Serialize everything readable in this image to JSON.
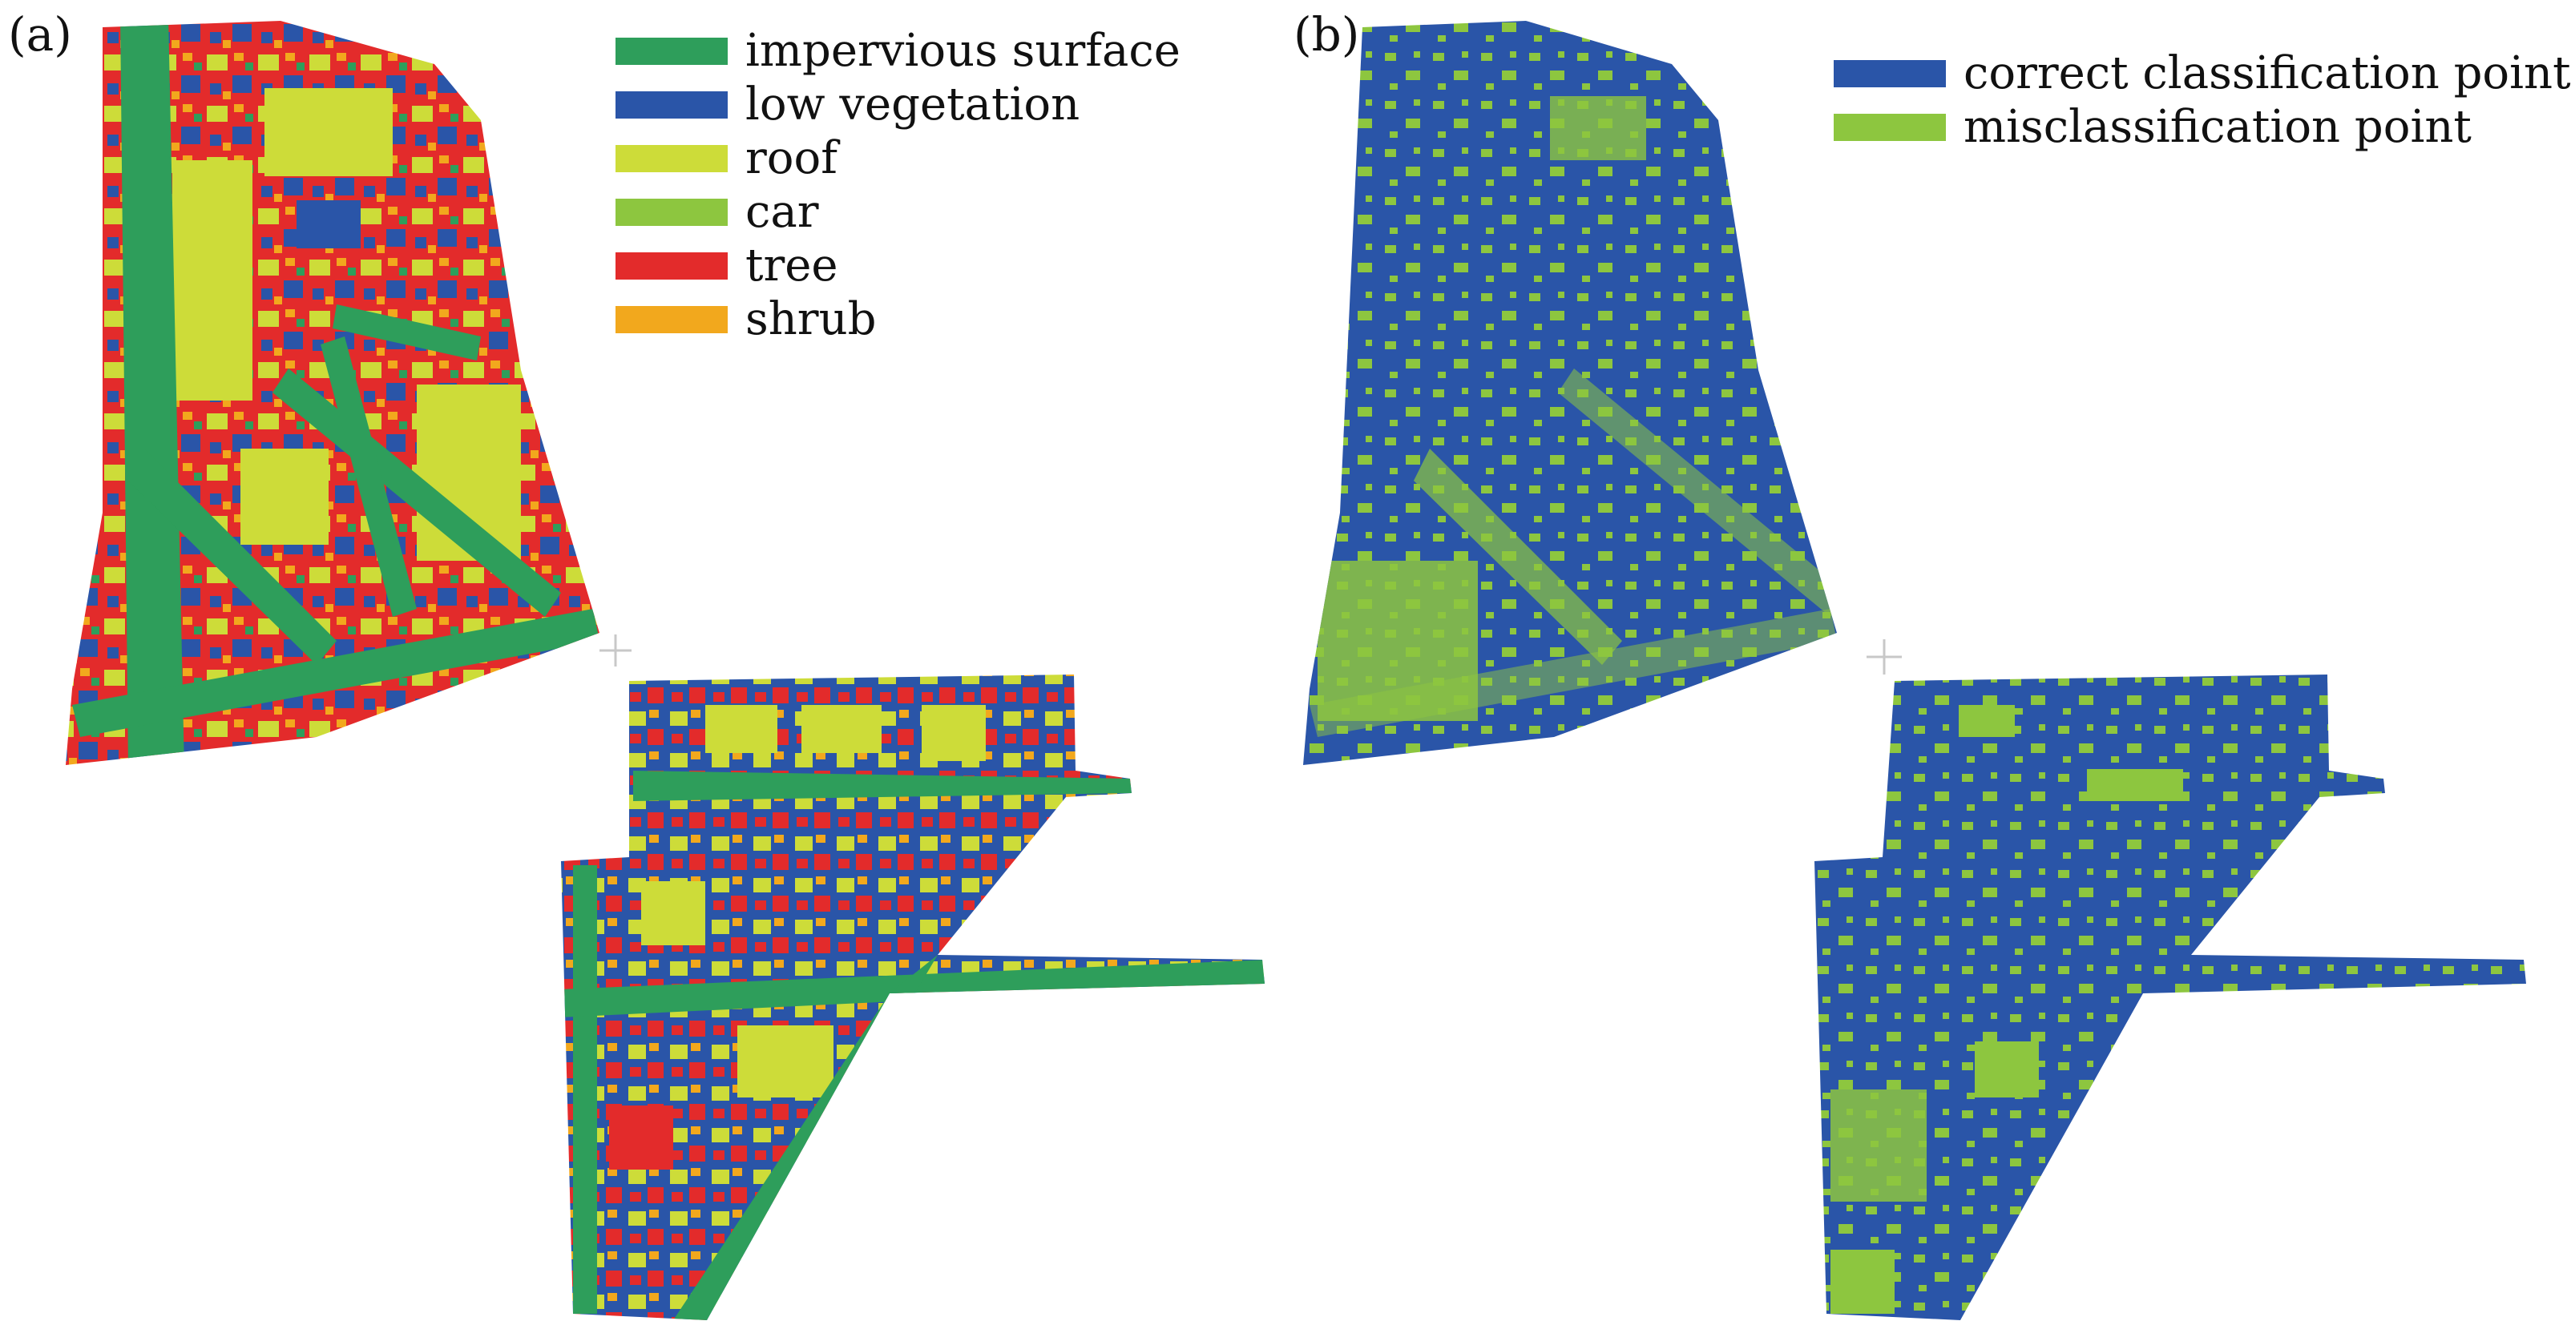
{
  "panel_a": {
    "label": "(a)",
    "legend": [
      {
        "label": "impervious surface",
        "color": "#2e9e5b"
      },
      {
        "label": "low vegetation",
        "color": "#2a55a8"
      },
      {
        "label": "roof",
        "color": "#cddc39"
      },
      {
        "label": "car",
        "color": "#8dc63f"
      },
      {
        "label": "tree",
        "color": "#e32b2b"
      },
      {
        "label": "shrub",
        "color": "#f2a81d"
      }
    ]
  },
  "panel_b": {
    "label": "(b)",
    "legend": [
      {
        "label": "correct classification point",
        "color": "#2a55a8"
      },
      {
        "label": "misclassification point",
        "color": "#8dc63f"
      }
    ]
  },
  "colors": {
    "impervious": "#2e9e5b",
    "low_vegetation": "#2a55a8",
    "roof": "#cddc39",
    "car": "#8dc63f",
    "tree": "#e32b2b",
    "shrub": "#f2a81d",
    "correct": "#2a55a8",
    "misclassified": "#8dc63f",
    "crosshair": "#c8c8c8"
  },
  "crosshair_icon": "plus-crosshair-icon"
}
